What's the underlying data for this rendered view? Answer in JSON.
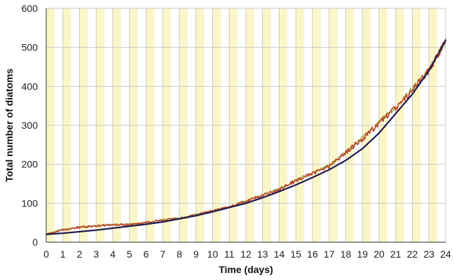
{
  "chart_data": {
    "type": "line",
    "title": "",
    "xlabel": "Time (days)",
    "ylabel": "Total number of diatoms",
    "xlim": [
      0,
      24
    ],
    "ylim": [
      0,
      600
    ],
    "x_ticks": [
      0,
      1,
      2,
      3,
      4,
      5,
      6,
      7,
      8,
      9,
      10,
      11,
      12,
      13,
      14,
      15,
      16,
      17,
      18,
      19,
      20,
      21,
      22,
      23,
      24
    ],
    "y_ticks": [
      0,
      100,
      200,
      300,
      400,
      500,
      600
    ],
    "grid": true,
    "legend": "none",
    "background_bands": {
      "description": "alternating light/dark periods shown as vertical bands",
      "shaded_intervals": [
        [
          0.0,
          0.5
        ],
        [
          1.0,
          1.5
        ],
        [
          2.0,
          2.5
        ],
        [
          3.0,
          3.5
        ],
        [
          4.0,
          4.5
        ],
        [
          5.0,
          5.5
        ],
        [
          6.0,
          6.5
        ],
        [
          7.0,
          7.5
        ],
        [
          8.0,
          8.5
        ],
        [
          9.0,
          9.5
        ],
        [
          10.0,
          10.5
        ],
        [
          11.0,
          11.5
        ],
        [
          12.0,
          12.5
        ],
        [
          13.0,
          13.5
        ],
        [
          14.0,
          14.5
        ],
        [
          15.0,
          15.5
        ],
        [
          16.0,
          16.5
        ],
        [
          17.0,
          17.5
        ],
        [
          18.0,
          18.5
        ],
        [
          19.0,
          19.5
        ],
        [
          20.0,
          20.5
        ],
        [
          21.0,
          21.5
        ],
        [
          22.0,
          22.5
        ],
        [
          23.0,
          23.5
        ]
      ],
      "color": "#fbf6c8"
    },
    "series": [
      {
        "style": "noisy measured data",
        "colors": [
          "#c0392b",
          "#8aa62e"
        ],
        "x": [
          0,
          1,
          2,
          3,
          4,
          5,
          6,
          7,
          8,
          9,
          10,
          11,
          12,
          13,
          14,
          15,
          16,
          17,
          18,
          19,
          20,
          21,
          22,
          23,
          24
        ],
        "values": [
          20,
          32,
          38,
          42,
          45,
          45,
          50,
          57,
          60,
          70,
          80,
          90,
          105,
          120,
          135,
          158,
          175,
          195,
          230,
          265,
          305,
          345,
          390,
          440,
          515
        ]
      },
      {
        "style": "fitted curve",
        "color": "#1f1a4f",
        "x": [
          0,
          1,
          2,
          3,
          4,
          5,
          6,
          7,
          8,
          9,
          10,
          11,
          12,
          13,
          14,
          15,
          16,
          17,
          18,
          19,
          20,
          21,
          22,
          23,
          24
        ],
        "values": [
          20,
          23,
          27,
          31,
          36,
          41,
          46,
          52,
          60,
          68,
          78,
          89,
          100,
          114,
          130,
          147,
          166,
          186,
          210,
          240,
          280,
          330,
          380,
          440,
          518
        ]
      }
    ],
    "colors": {
      "grid": "#c8c8c8",
      "axis": "#555555",
      "band": "#fbf6c8"
    }
  }
}
